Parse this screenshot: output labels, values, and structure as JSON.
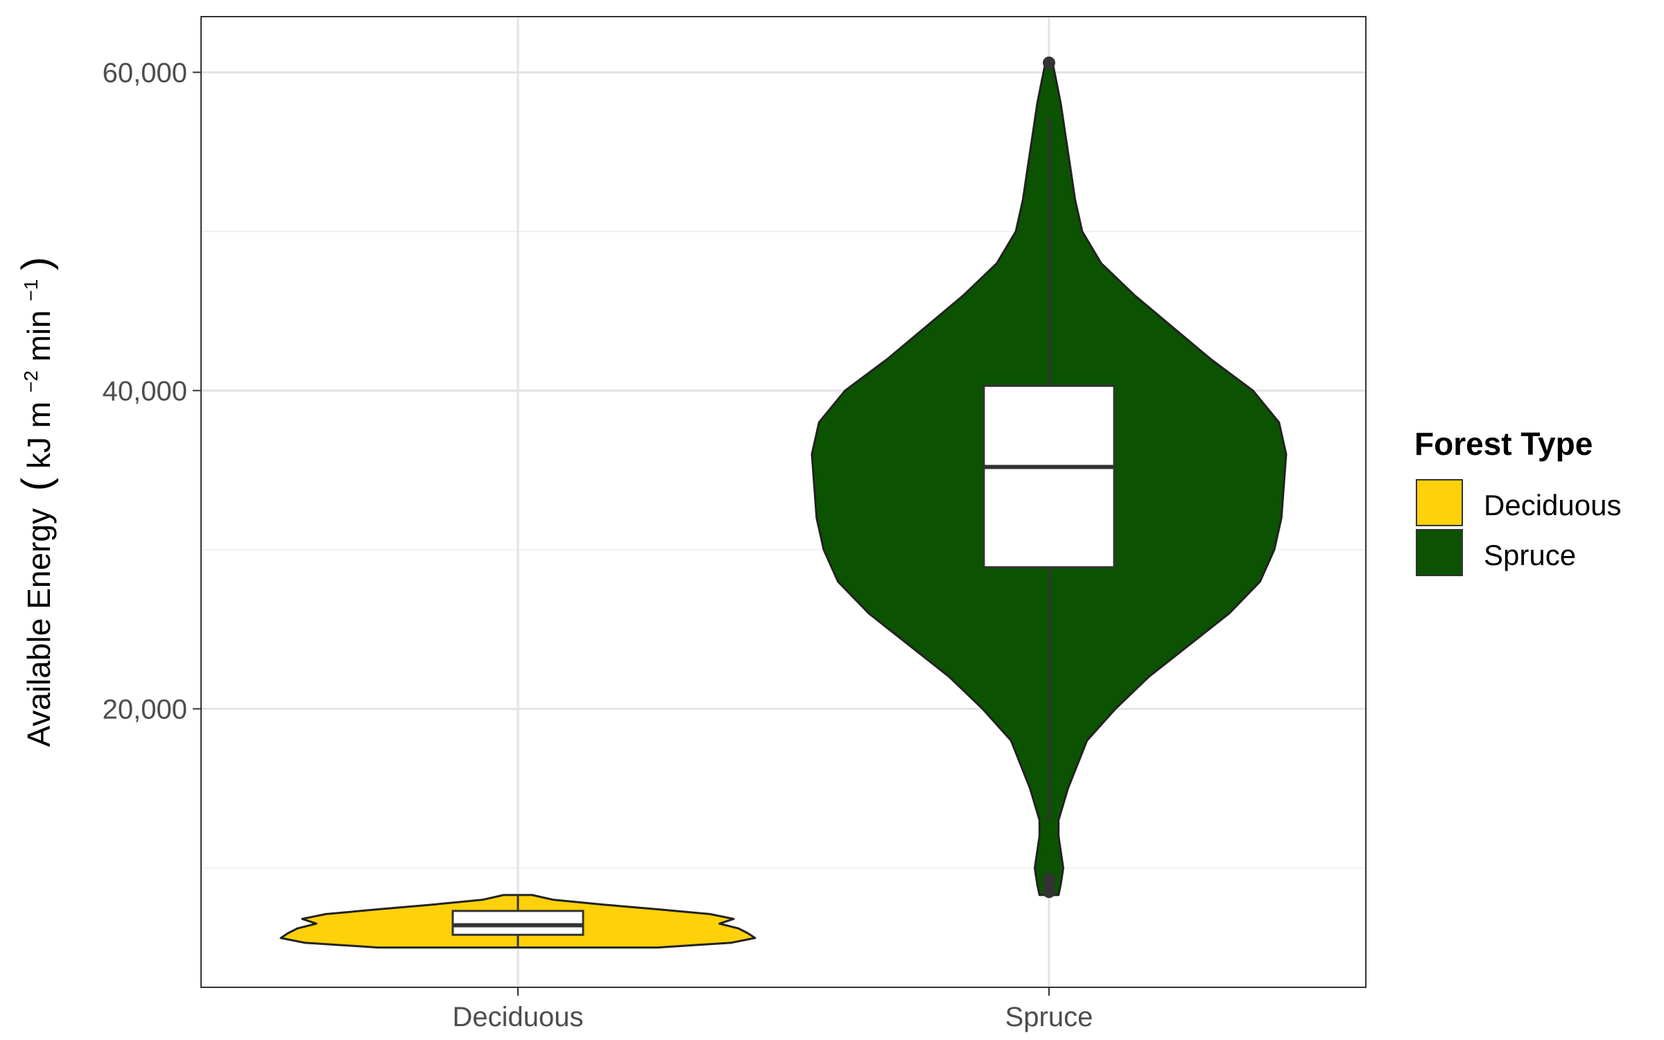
{
  "chart_data": {
    "type": "violin",
    "title": "",
    "xlabel": "",
    "ylabel": "Available Energy",
    "ylabel_units": {
      "open": "(",
      "kj": "kJ m",
      "sup1": "−2",
      "min": " min",
      "sup2": "−1",
      "close": ")"
    },
    "ylim": [
      2500,
      63500
    ],
    "yticks": [
      20000,
      40000,
      60000
    ],
    "ytick_labels": [
      "20,000",
      "40,000",
      "60,000"
    ],
    "minor_gridlines": [
      10000,
      30000,
      50000
    ],
    "grid": true,
    "categories": [
      "Deciduous",
      "Spruce"
    ],
    "legend": {
      "title": "Forest Type",
      "position": "right",
      "entries": [
        {
          "label": "Deciduous",
          "color": "#FFD10A"
        },
        {
          "label": "Spruce",
          "color": "#0B5300"
        }
      ]
    },
    "series": [
      {
        "name": "Deciduous",
        "color": "#FFD10A",
        "box": {
          "whisker_low": 5000,
          "q1": 5800,
          "median": 6400,
          "q3": 7300,
          "whisker_high": 8300
        },
        "outliers": [],
        "density": [
          [
            5000,
            0.59
          ],
          [
            5300,
            0.9
          ],
          [
            5600,
            1.0
          ],
          [
            5900,
            0.97
          ],
          [
            6200,
            0.93
          ],
          [
            6500,
            0.85
          ],
          [
            6800,
            0.91
          ],
          [
            7100,
            0.81
          ],
          [
            7400,
            0.59
          ],
          [
            7700,
            0.36
          ],
          [
            8000,
            0.15
          ],
          [
            8300,
            0.06
          ]
        ]
      },
      {
        "name": "Spruce",
        "color": "#0B5300",
        "box": {
          "whisker_low": 13000,
          "q1": 28900,
          "median": 35200,
          "q3": 40300,
          "whisker_high": 57200
        },
        "outliers": [
          8500,
          8900,
          9300,
          60600
        ],
        "density": [
          [
            8300,
            0.04
          ],
          [
            9000,
            0.05
          ],
          [
            10000,
            0.06
          ],
          [
            11000,
            0.05
          ],
          [
            12000,
            0.04
          ],
          [
            13000,
            0.04
          ],
          [
            15000,
            0.08
          ],
          [
            18000,
            0.16
          ],
          [
            20000,
            0.28
          ],
          [
            22000,
            0.42
          ],
          [
            24000,
            0.59
          ],
          [
            26000,
            0.76
          ],
          [
            28000,
            0.89
          ],
          [
            30000,
            0.95
          ],
          [
            32000,
            0.98
          ],
          [
            34000,
            0.99
          ],
          [
            36000,
            1.0
          ],
          [
            38000,
            0.97
          ],
          [
            40000,
            0.86
          ],
          [
            42000,
            0.68
          ],
          [
            44000,
            0.52
          ],
          [
            46000,
            0.36
          ],
          [
            48000,
            0.22
          ],
          [
            50000,
            0.14
          ],
          [
            52000,
            0.11
          ],
          [
            54000,
            0.09
          ],
          [
            56000,
            0.07
          ],
          [
            58000,
            0.05
          ],
          [
            59500,
            0.03
          ],
          [
            60600,
            0.015
          ]
        ]
      }
    ]
  }
}
